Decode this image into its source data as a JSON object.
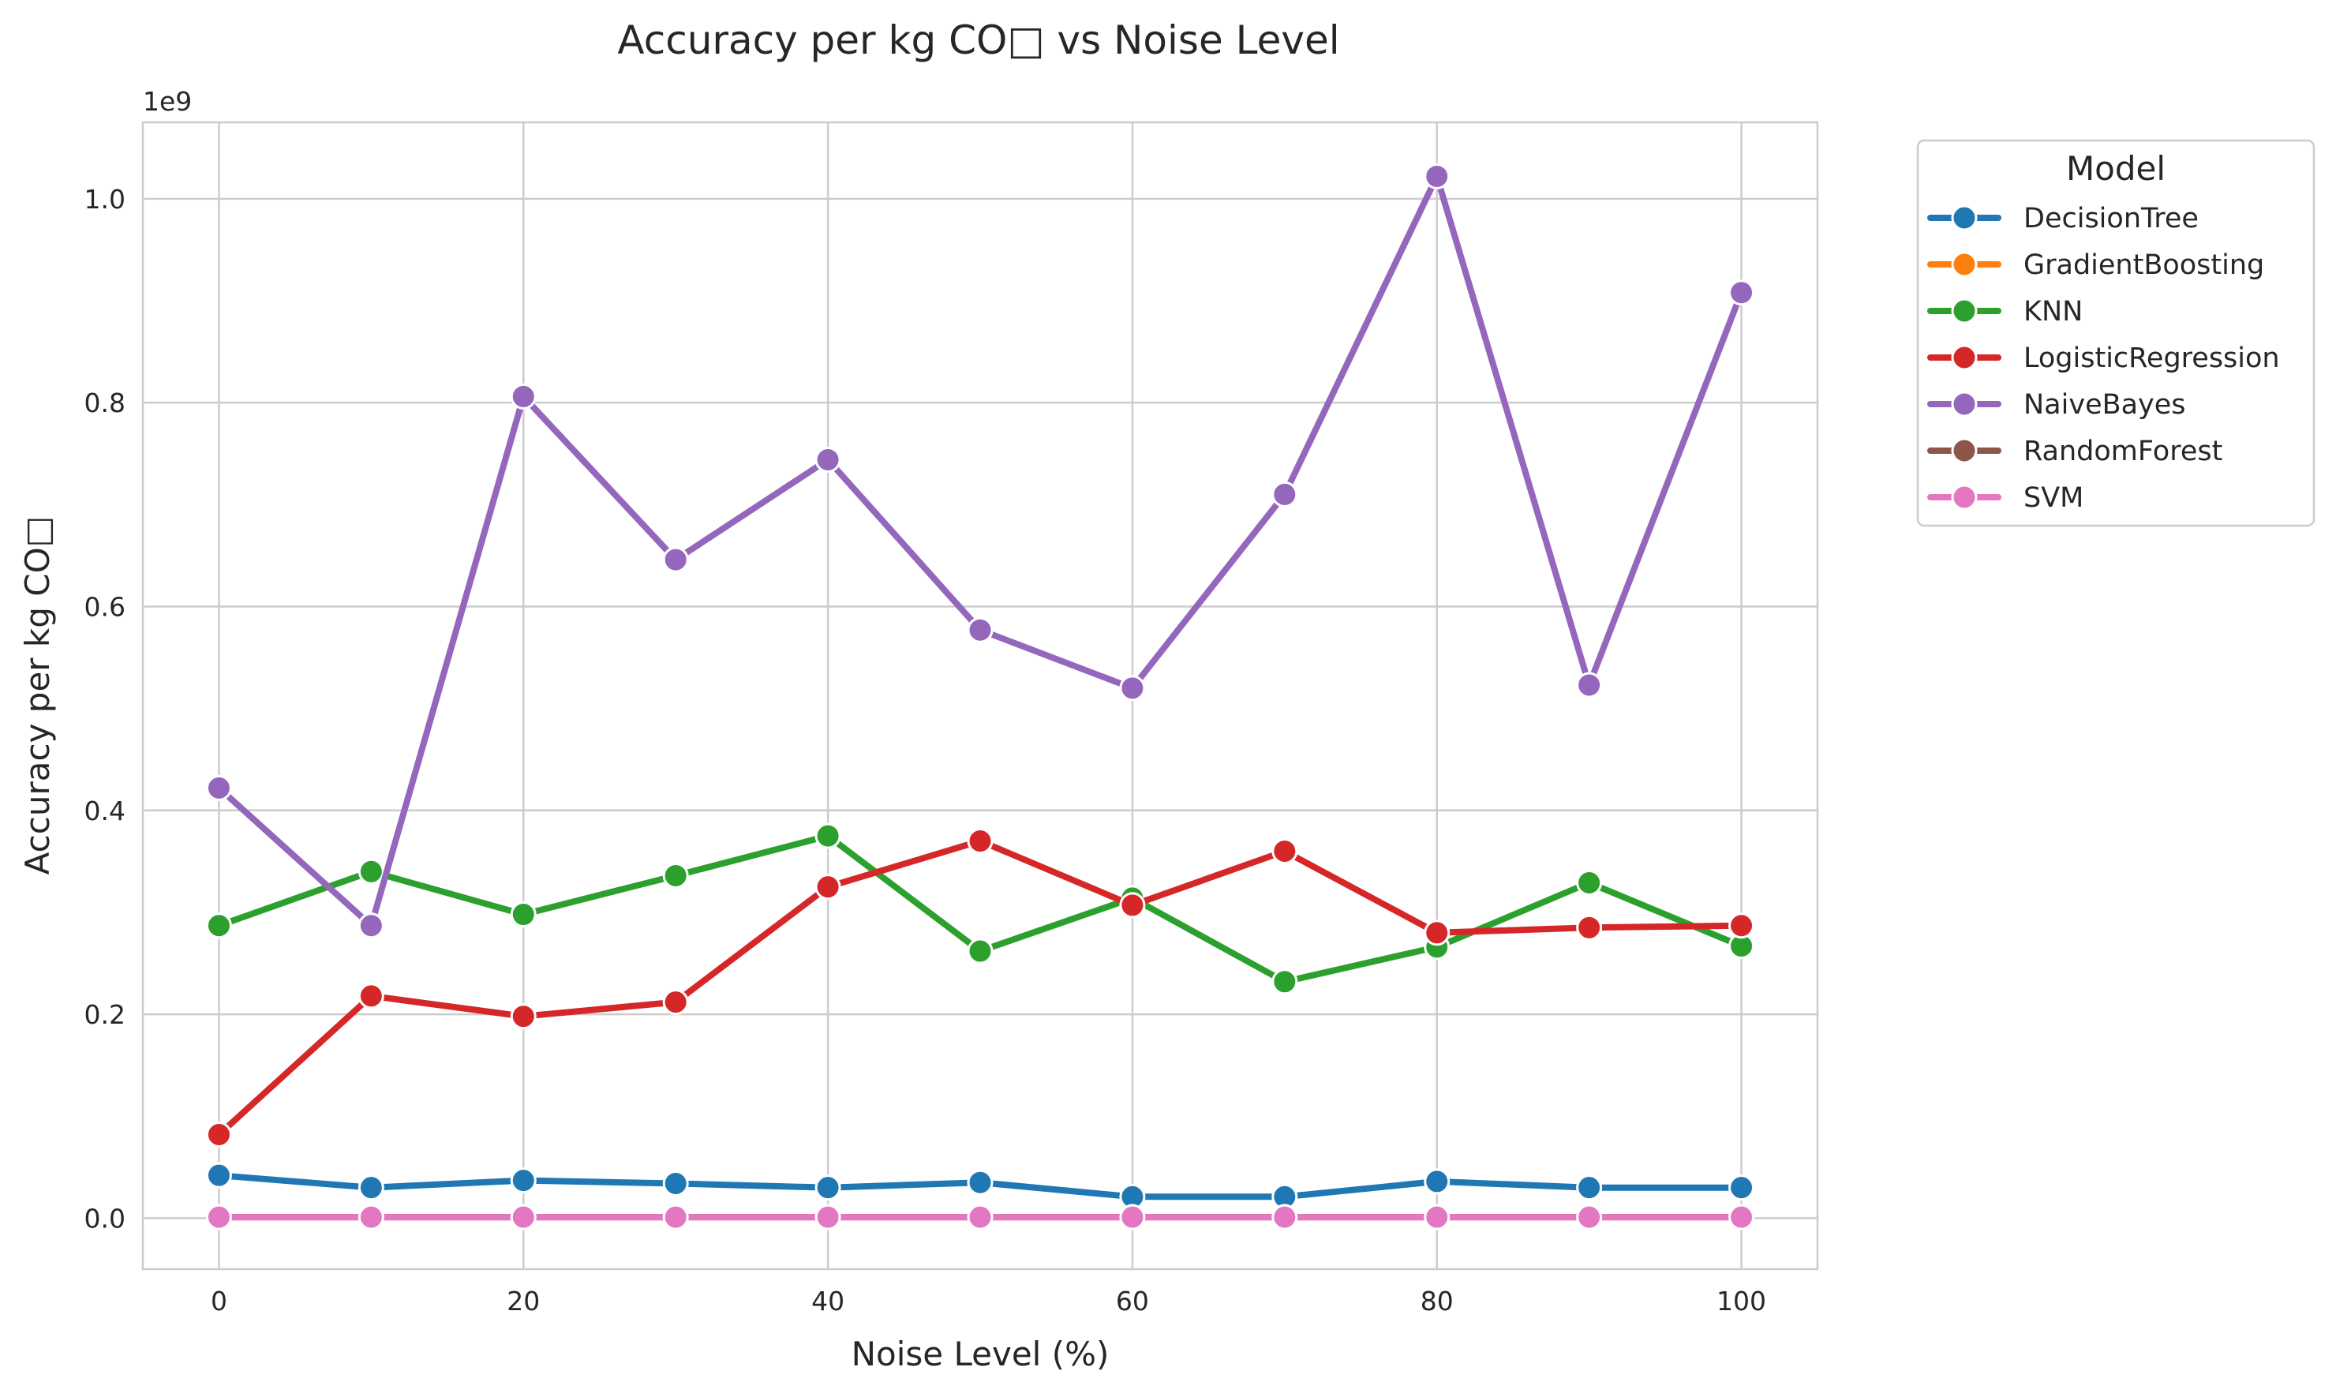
{
  "chart_data": {
    "type": "line",
    "title": "Accuracy per kg CO□ vs Noise Level",
    "xlabel": "Noise Level (%)",
    "ylabel": "Accuracy per kg CO□",
    "y_offset_label": "1e9",
    "xlim": [
      -5,
      105
    ],
    "ylim": [
      -0.05,
      1.075
    ],
    "x_ticks": [
      0,
      20,
      40,
      60,
      80,
      100
    ],
    "x_tick_labels": [
      "0",
      "20",
      "40",
      "60",
      "80",
      "100"
    ],
    "y_ticks": [
      0.0,
      0.2,
      0.4,
      0.6,
      0.8,
      1.0
    ],
    "y_tick_labels": [
      "0.0",
      "0.2",
      "0.4",
      "0.6",
      "0.8",
      "1.0"
    ],
    "grid": true,
    "legend_title": "Model",
    "legend_position": "outside-top-right",
    "x": [
      0,
      10,
      20,
      30,
      40,
      50,
      60,
      70,
      80,
      90,
      100
    ],
    "series": [
      {
        "name": "DecisionTree",
        "color": "#1f77b4",
        "values": [
          0.042,
          0.03,
          0.037,
          0.034,
          0.03,
          0.035,
          0.021,
          0.021,
          0.036,
          0.03,
          0.03
        ]
      },
      {
        "name": "GradientBoosting",
        "color": "#ff7f0e",
        "values": [
          0.001,
          0.001,
          0.001,
          0.001,
          0.001,
          0.001,
          0.001,
          0.001,
          0.001,
          0.001,
          0.001
        ]
      },
      {
        "name": "KNN",
        "color": "#2ca02c",
        "values": [
          0.287,
          0.34,
          0.298,
          0.336,
          0.375,
          0.262,
          0.314,
          0.232,
          0.266,
          0.329,
          0.267
        ]
      },
      {
        "name": "LogisticRegression",
        "color": "#d62728",
        "values": [
          0.082,
          0.218,
          0.198,
          0.212,
          0.325,
          0.37,
          0.307,
          0.36,
          0.28,
          0.285,
          0.287
        ]
      },
      {
        "name": "NaiveBayes",
        "color": "#9467bd",
        "values": [
          0.422,
          0.287,
          0.806,
          0.646,
          0.744,
          0.577,
          0.52,
          0.71,
          1.022,
          0.523,
          0.908
        ]
      },
      {
        "name": "RandomForest",
        "color": "#8c564b",
        "values": [
          0.001,
          0.001,
          0.001,
          0.001,
          0.001,
          0.001,
          0.001,
          0.001,
          0.001,
          0.001,
          0.001
        ]
      },
      {
        "name": "SVM",
        "color": "#e377c2",
        "values": [
          0.001,
          0.001,
          0.001,
          0.001,
          0.001,
          0.001,
          0.001,
          0.001,
          0.001,
          0.001,
          0.001
        ]
      }
    ]
  }
}
